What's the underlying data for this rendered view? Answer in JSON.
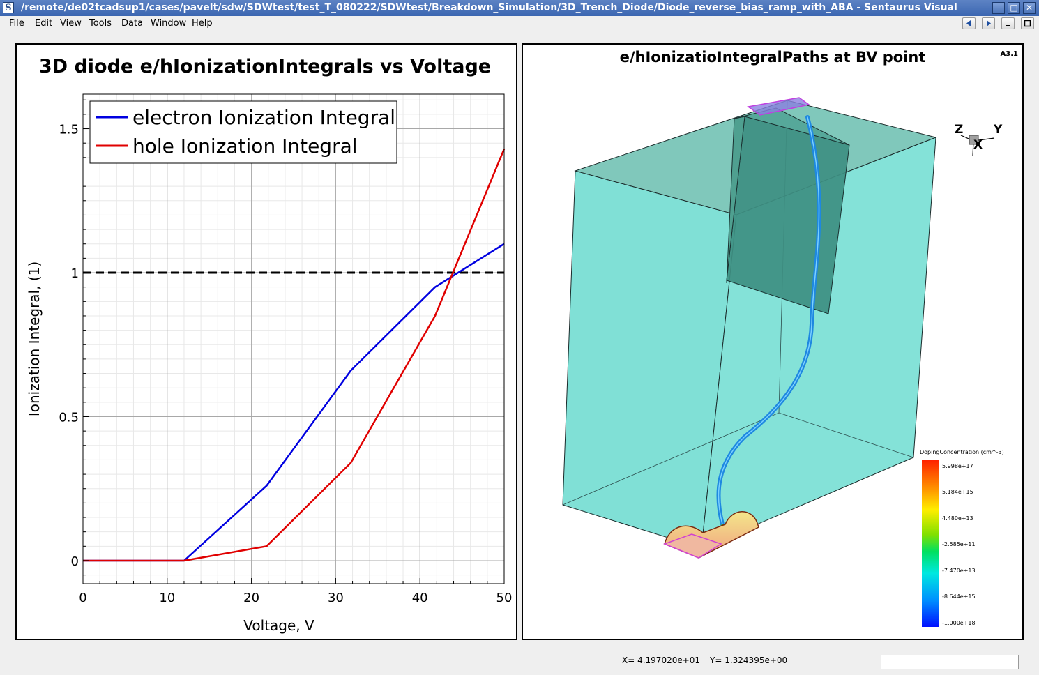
{
  "window": {
    "title": "/remote/de02tcadsup1/cases/pavelt/sdw/SDWtest/test_T_080222/SDWtest/Breakdown_Simulation/3D_Trench_Diode/Diode_reverse_bias_ramp_with_ABA - Sentaurus Visual",
    "app_icon_letter": "S"
  },
  "menu": [
    "File",
    "Edit",
    "View",
    "Tools",
    "Data",
    "Window",
    "Help"
  ],
  "plot": {
    "chart_data": {
      "type": "line",
      "title": "3D diode e/hIonizationIntegrals vs Voltage",
      "xlabel": "Voltage, V",
      "ylabel": "Ionization Integral, (1)",
      "xlim": [
        0,
        50
      ],
      "ylim": [
        -0.08,
        1.62
      ],
      "xticks": [
        0,
        10,
        20,
        30,
        40,
        50
      ],
      "xtick_labels": [
        "0",
        "10",
        "20",
        "30",
        "40",
        "50"
      ],
      "yticks": [
        0,
        0.5,
        1,
        1.5
      ],
      "ytick_labels": [
        "0",
        "0.5",
        "1",
        "1.5"
      ],
      "grid": true,
      "legend_position": "top-left",
      "series": [
        {
          "name": "electron Ionization Integral",
          "color": "#0000e0",
          "x": [
            0,
            12,
            21.8,
            31.8,
            41.8,
            50
          ],
          "y": [
            0,
            0,
            0.26,
            0.66,
            0.95,
            1.1
          ]
        },
        {
          "name": "hole Ionization Integral",
          "color": "#e00000",
          "x": [
            0,
            12,
            21.8,
            31.8,
            41.8,
            50
          ],
          "y": [
            0,
            0,
            0.05,
            0.34,
            0.85,
            1.43
          ]
        }
      ],
      "reference_line": {
        "y": 1,
        "style": "dashed",
        "color": "#000000"
      }
    }
  },
  "view3d": {
    "title": "e/hIonizatioIntegralPaths at BV point",
    "corner_label": "A3.1",
    "axes": {
      "z": "Z",
      "y": "Y",
      "x": "X"
    },
    "colors": {
      "body": "#80e0d6",
      "trench": "#3e8f82",
      "path": "#1e88e0",
      "contact": "#f0c080"
    },
    "legend": {
      "title": "DopingConcentration (cm^-3)",
      "labels": [
        "5.998e+17",
        "5.184e+15",
        "4.480e+13",
        "-2.585e+11",
        "-7.470e+13",
        "-8.644e+15",
        "-1.000e+18"
      ]
    }
  },
  "status": {
    "x": "X= 4.197020e+01",
    "y": "Y= 1.324395e+00"
  }
}
